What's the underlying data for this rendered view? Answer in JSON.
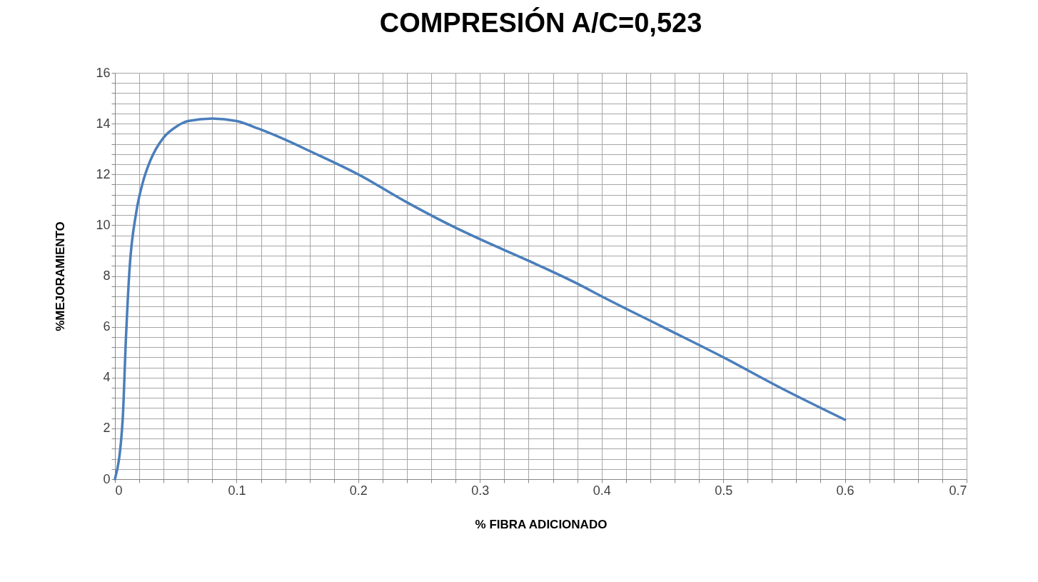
{
  "chart_data": {
    "type": "line",
    "title": "COMPRESIÓN   A/C=0,523",
    "xlabel": "% FIBRA ADICIONADO",
    "ylabel": "%MEJORAMIENTO",
    "x": [
      0,
      0.0063,
      0.009,
      0.0119,
      0.0175,
      0.023,
      0.0287,
      0.04,
      0.051,
      0.06,
      0.08,
      0.1,
      0.118,
      0.136,
      0.161,
      0.2,
      0.24,
      0.28,
      0.3,
      0.34,
      0.38,
      0.4,
      0.45,
      0.5,
      0.549,
      0.6
    ],
    "series": [
      {
        "color": "#4a7ebb",
        "values": [
          0,
          2.3,
          5.5,
          8.2,
          10.5,
          11.7,
          12.5,
          13.45,
          13.9,
          14.1,
          14.2,
          14.1,
          13.8,
          13.45,
          12.9,
          12.0,
          10.9,
          9.9,
          9.45,
          8.6,
          7.7,
          7.2,
          6.0,
          4.8,
          3.55,
          2.34
        ]
      }
    ],
    "xlim": [
      0,
      0.7
    ],
    "ylim": [
      0,
      16
    ],
    "xticks": [
      0,
      {
        "value": 0.02,
        "label": null
      },
      {
        "value": 0.04,
        "label": null
      },
      {
        "value": 0.06,
        "label": null
      },
      {
        "value": 0.08,
        "label": null
      },
      0.1,
      {
        "value": 0.12,
        "label": null
      },
      {
        "value": 0.14,
        "label": null
      },
      {
        "value": 0.16,
        "label": null
      },
      {
        "value": 0.18,
        "label": null
      },
      0.2,
      {
        "value": 0.22,
        "label": null
      },
      {
        "value": 0.24,
        "label": null
      },
      {
        "value": 0.26,
        "label": null
      },
      {
        "value": 0.28,
        "label": null
      },
      0.3,
      {
        "value": 0.32,
        "label": null
      },
      {
        "value": 0.34,
        "label": null
      },
      {
        "value": 0.36,
        "label": null
      },
      {
        "value": 0.38,
        "label": null
      },
      0.4,
      {
        "value": 0.42,
        "label": null
      },
      {
        "value": 0.44,
        "label": null
      },
      {
        "value": 0.46,
        "label": null
      },
      {
        "value": 0.48,
        "label": null
      },
      0.5,
      {
        "value": 0.52,
        "label": null
      },
      {
        "value": 0.54,
        "label": null
      },
      {
        "value": 0.56,
        "label": null
      },
      {
        "value": 0.58,
        "label": null
      },
      0.6,
      {
        "value": 0.62,
        "label": null
      },
      {
        "value": 0.64,
        "label": null
      },
      {
        "value": 0.66,
        "label": null
      },
      {
        "value": 0.68,
        "label": null
      },
      0.7
    ],
    "yticks": [
      0,
      {
        "value": 0.4,
        "label": null
      },
      {
        "value": 0.8,
        "label": null
      },
      {
        "value": 1.2,
        "label": null
      },
      {
        "value": 1.6,
        "label": null
      },
      2,
      {
        "value": 2.4,
        "label": null
      },
      {
        "value": 2.8,
        "label": null
      },
      {
        "value": 3.2,
        "label": null
      },
      {
        "value": 3.6,
        "label": null
      },
      4,
      {
        "value": 4.4,
        "label": null
      },
      {
        "value": 4.8,
        "label": null
      },
      {
        "value": 5.2,
        "label": null
      },
      {
        "value": 5.6,
        "label": null
      },
      6,
      {
        "value": 6.4,
        "label": null
      },
      {
        "value": 6.8,
        "label": null
      },
      {
        "value": 7.2,
        "label": null
      },
      {
        "value": 7.6,
        "label": null
      },
      8,
      {
        "value": 8.4,
        "label": null
      },
      {
        "value": 8.8,
        "label": null
      },
      {
        "value": 9.2,
        "label": null
      },
      {
        "value": 9.6,
        "label": null
      },
      10,
      {
        "value": 10.4,
        "label": null
      },
      {
        "value": 10.8,
        "label": null
      },
      {
        "value": 11.2,
        "label": null
      },
      {
        "value": 11.6,
        "label": null
      },
      12,
      {
        "value": 12.4,
        "label": null
      },
      {
        "value": 12.8,
        "label": null
      },
      {
        "value": 13.2,
        "label": null
      },
      {
        "value": 13.6,
        "label": null
      },
      14,
      {
        "value": 14.4,
        "label": null
      },
      {
        "value": 14.8,
        "label": null
      },
      {
        "value": 15.2,
        "label": null
      },
      {
        "value": 15.6,
        "label": null
      },
      16
    ],
    "grid": true,
    "marker": "none",
    "line_style": "solid"
  }
}
